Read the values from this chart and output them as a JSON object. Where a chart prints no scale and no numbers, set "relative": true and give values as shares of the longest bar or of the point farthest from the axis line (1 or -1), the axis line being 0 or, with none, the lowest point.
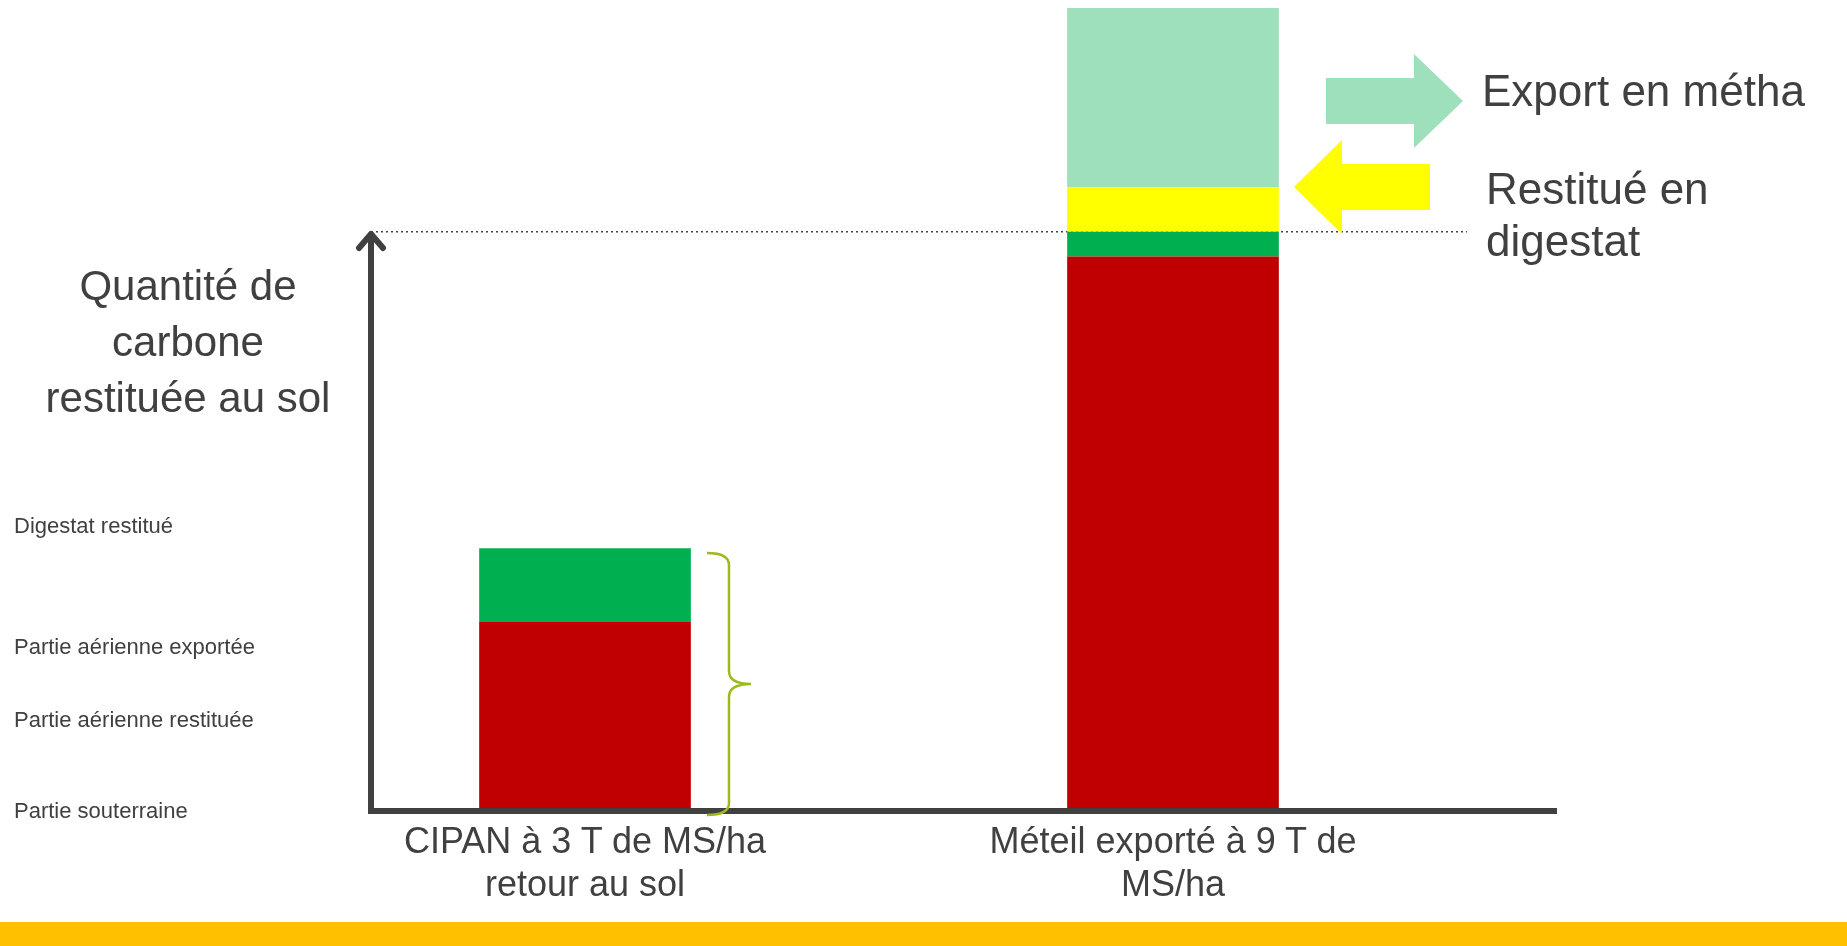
{
  "chart_data": {
    "type": "bar",
    "relative": true,
    "ylabel": "Quantité de carbone restituée au sol",
    "categories": [
      "CIPAN à 3 T de MS/ha retour au sol",
      "Méteil exporté à 9 T de MS/ha"
    ],
    "series": [
      {
        "color": "#c00000",
        "values": [
          0.234,
          0.69
        ]
      },
      {
        "color": "#00b050",
        "values": [
          0.092,
          0.031
        ]
      },
      {
        "color": "#ffff00",
        "values": [
          null,
          0.055
        ]
      },
      {
        "color": "#9ee0bb",
        "values": [
          null,
          0.224
        ]
      }
    ],
    "ref_lines": [
      {
        "axis": "y",
        "value": 0.721,
        "color": "#404040",
        "line_style": "dotted"
      }
    ],
    "annotations": [
      "Digestat restitué",
      "Partie aérienne exportée",
      "Partie aérienne restituée",
      "Partie souterraine",
      "Export en métha",
      "Restitué en digestat"
    ],
    "stacked": true,
    "grid": false,
    "legend": false
  }
}
